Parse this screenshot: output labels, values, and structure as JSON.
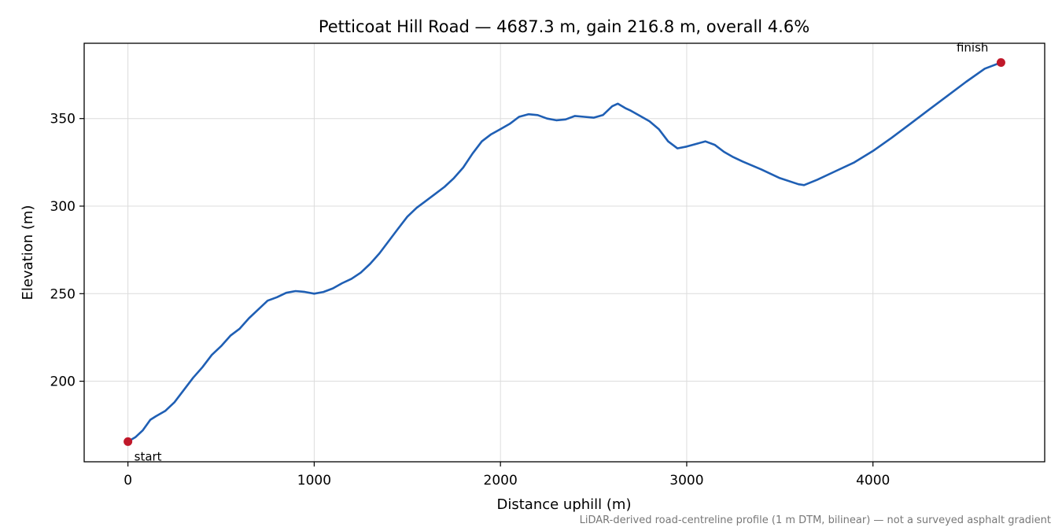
{
  "chart_data": {
    "type": "line",
    "title": "Petticoat Hill Road — 4687.3 m, gain 216.8 m, overall 4.6%",
    "xlabel": "Distance uphill (m)",
    "ylabel": "Elevation (m)",
    "caption": "LiDAR-derived road-centreline profile (1 m DTM, bilinear) — not a surveyed asphalt gradient",
    "xlim": [
      -235,
      4922
    ],
    "ylim": [
      154,
      393
    ],
    "xticks": [
      0,
      1000,
      2000,
      3000,
      4000
    ],
    "yticks": [
      200,
      250,
      300,
      350
    ],
    "grid": true,
    "series": [
      {
        "color": "#1f5fb4",
        "x": [
          0,
          40,
          80,
          120,
          150,
          200,
          250,
          300,
          350,
          400,
          450,
          500,
          550,
          600,
          650,
          700,
          750,
          800,
          850,
          900,
          950,
          1000,
          1050,
          1100,
          1150,
          1200,
          1250,
          1300,
          1350,
          1400,
          1450,
          1500,
          1550,
          1600,
          1650,
          1700,
          1750,
          1800,
          1850,
          1900,
          1950,
          2000,
          2050,
          2100,
          2150,
          2200,
          2250,
          2300,
          2350,
          2400,
          2450,
          2500,
          2550,
          2600,
          2630,
          2670,
          2700,
          2750,
          2800,
          2850,
          2900,
          2950,
          3000,
          3050,
          3100,
          3150,
          3200,
          3250,
          3300,
          3400,
          3500,
          3600,
          3630,
          3700,
          3800,
          3900,
          4000,
          4100,
          4200,
          4300,
          4400,
          4500,
          4600,
          4687.3
        ],
        "values": [
          165.5,
          168,
          172,
          178,
          180,
          183,
          188,
          195,
          202,
          208,
          215,
          220,
          226,
          230,
          236,
          241,
          246,
          248,
          250.5,
          251.5,
          251,
          250,
          251,
          253,
          256,
          258.5,
          262,
          267,
          273,
          280,
          287,
          294,
          299,
          303,
          307,
          311,
          316,
          322,
          330,
          337,
          341,
          344,
          347,
          351,
          352.5,
          352,
          350,
          349,
          349.5,
          351.5,
          351,
          350.5,
          352,
          357,
          358.5,
          356,
          354.5,
          351.5,
          348.5,
          344,
          337,
          333,
          334,
          335.5,
          337,
          335,
          331,
          328,
          325.5,
          321,
          316,
          312.5,
          312,
          315,
          320,
          325,
          331.5,
          339,
          347,
          355,
          363,
          371,
          378.5,
          382
        ]
      }
    ],
    "markers": [
      {
        "label": "start",
        "x": 0,
        "y": 165.5,
        "color": "#c0182a"
      },
      {
        "label": "finish",
        "x": 4687.3,
        "y": 382,
        "color": "#c0182a"
      }
    ]
  }
}
